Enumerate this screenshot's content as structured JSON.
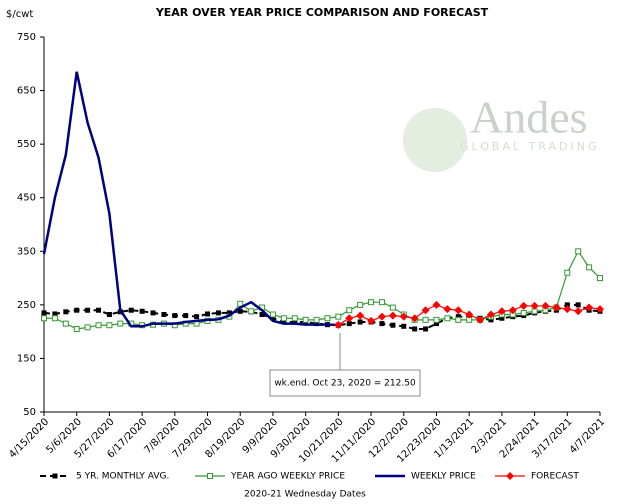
{
  "chart_data": {
    "type": "line",
    "title": "YEAR OVER YEAR PRICE COMPARISON AND FORECAST",
    "y_label": "$/cwt",
    "x_label": "2020-21 Wednesday Dates",
    "annotation": "wk.end. Oct 23, 2020  = 212.50",
    "watermark": "Andes",
    "watermark_sub": "GLOBAL TRADING",
    "categories": [
      "4/15/2020",
      null,
      null,
      "5/6/2020",
      null,
      null,
      "5/27/2020",
      null,
      null,
      "6/17/2020",
      null,
      null,
      "7/8/2020",
      null,
      null,
      "7/29/2020",
      null,
      null,
      "8/19/2020",
      null,
      null,
      "9/9/2020",
      null,
      null,
      "9/30/2020",
      null,
      null,
      "10/21/2020",
      null,
      null,
      "11/11/2020",
      null,
      null,
      "12/2/2020",
      null,
      null,
      "12/23/2020",
      null,
      null,
      "1/13/2021",
      null,
      null,
      "2/3/2021",
      null,
      null,
      "2/24/2021",
      null,
      null,
      "3/17/2021",
      null,
      null,
      "4/7/2021"
    ],
    "ylim": [
      50,
      750
    ],
    "yticks": [
      50,
      150,
      250,
      350,
      450,
      550,
      650,
      750
    ],
    "grid": false,
    "legend": "bottom",
    "series": [
      {
        "name": "5 YR. MONTHLY AVG.",
        "color": "#000000",
        "style": "dashed",
        "marker": "square",
        "values": [
          235,
          233,
          237,
          240,
          240,
          240,
          232,
          237,
          240,
          238,
          235,
          232,
          230,
          230,
          228,
          233,
          235,
          235,
          238,
          237,
          232,
          225,
          218,
          218,
          218,
          215,
          213,
          212,
          215,
          218,
          218,
          215,
          212,
          210,
          205,
          205,
          215,
          225,
          228,
          228,
          225,
          222,
          225,
          228,
          230,
          235,
          238,
          240,
          250,
          250,
          240,
          238
        ]
      },
      {
        "name": "YEAR AGO WEEKLY PRICE",
        "color": "#339933",
        "style": "solid",
        "marker": "hollow-square",
        "values": [
          225,
          225,
          215,
          205,
          208,
          212,
          212,
          215,
          215,
          212,
          213,
          215,
          212,
          215,
          215,
          220,
          222,
          228,
          252,
          238,
          245,
          232,
          225,
          225,
          222,
          222,
          225,
          228,
          240,
          250,
          255,
          255,
          245,
          232,
          222,
          222,
          222,
          225,
          222,
          222,
          222,
          228,
          232,
          232,
          235,
          238,
          240,
          245,
          310,
          350,
          320,
          300
        ]
      },
      {
        "name": "WEEKLY PRICE",
        "color": "#000080",
        "style": "thick",
        "marker": "none",
        "values": [
          345,
          450,
          530,
          685,
          590,
          525,
          420,
          240,
          210,
          210,
          215,
          215,
          215,
          218,
          220,
          222,
          223,
          230,
          245,
          255,
          240,
          220,
          215,
          215,
          213,
          213,
          213,
          212.5,
          null,
          null,
          null,
          null,
          null,
          null,
          null,
          null,
          null,
          null,
          null,
          null,
          null,
          null,
          null,
          null,
          null,
          null,
          null,
          null,
          null,
          null,
          null,
          null
        ]
      },
      {
        "name": "FORECAST",
        "color": "#ff0000",
        "style": "solid",
        "marker": "diamond",
        "values": [
          null,
          null,
          null,
          null,
          null,
          null,
          null,
          null,
          null,
          null,
          null,
          null,
          null,
          null,
          null,
          null,
          null,
          null,
          null,
          null,
          null,
          null,
          null,
          null,
          null,
          null,
          null,
          212.5,
          225,
          230,
          220,
          228,
          230,
          228,
          225,
          240,
          250,
          242,
          240,
          232,
          222,
          232,
          238,
          240,
          248,
          248,
          248,
          245,
          242,
          238,
          245,
          242
        ]
      }
    ]
  }
}
